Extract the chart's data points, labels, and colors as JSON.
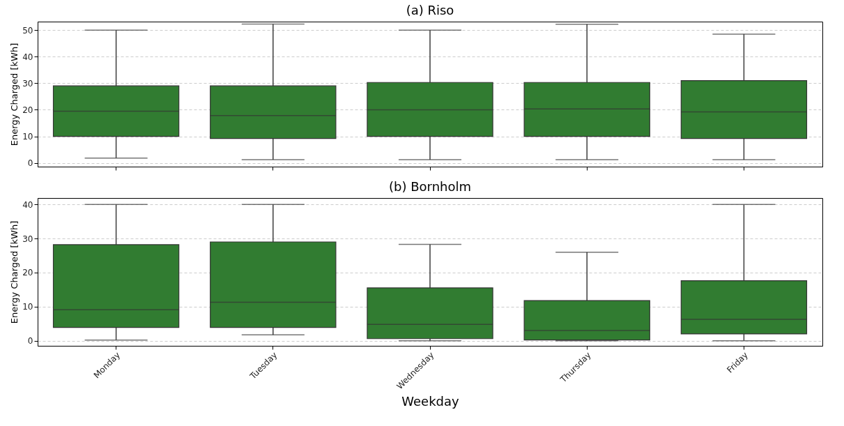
{
  "chart_data": [
    {
      "type": "box",
      "title": "(a) Riso",
      "ylabel": "Energy Charged [kWh]",
      "categories": [
        "Monday",
        "Tuesday",
        "Wednesday",
        "Thursday",
        "Friday"
      ],
      "ylim": [
        -1.4,
        53.2
      ],
      "yticks": [
        0,
        10,
        20,
        30,
        40,
        50
      ],
      "grid": "y",
      "tick_labels": "y",
      "series": [
        {
          "color": "#317c31",
          "boxes": [
            {
              "low": 1.8,
              "q1": 10,
              "median": 19.5,
              "q3": 29,
              "high": 50
            },
            {
              "low": 1.2,
              "q1": 9.2,
              "median": 17.8,
              "q3": 29,
              "high": 52.3
            },
            {
              "low": 1.2,
              "q1": 10,
              "median": 20,
              "q3": 30.3,
              "high": 50
            },
            {
              "low": 1.2,
              "q1": 10,
              "median": 20.3,
              "q3": 30.3,
              "high": 52.2
            },
            {
              "low": 1.2,
              "q1": 9.2,
              "median": 19.2,
              "q3": 31,
              "high": 48.5
            }
          ]
        }
      ]
    },
    {
      "type": "box",
      "title": "(b) Bornholm",
      "xlabel": "Weekday",
      "ylabel": "Energy Charged [kWh]",
      "categories": [
        "Monday",
        "Tuesday",
        "Wednesday",
        "Thursday",
        "Friday"
      ],
      "ylim": [
        -1.5,
        41.9
      ],
      "yticks": [
        0,
        10,
        20,
        30,
        40
      ],
      "grid": "y",
      "series": [
        {
          "color": "#317c31",
          "boxes": [
            {
              "low": 0.2,
              "q1": 3.9,
              "median": 9.1,
              "q3": 28.2,
              "high": 40
            },
            {
              "low": 1.7,
              "q1": 3.9,
              "median": 11.3,
              "q3": 29,
              "high": 40
            },
            {
              "low": 0,
              "q1": 0.6,
              "median": 4.8,
              "q3": 15.5,
              "high": 28.3
            },
            {
              "low": 0,
              "q1": 0.2,
              "median": 3,
              "q3": 11.8,
              "high": 26
            },
            {
              "low": 0,
              "q1": 2,
              "median": 6.3,
              "q3": 17.6,
              "high": 40
            }
          ]
        }
      ]
    }
  ]
}
